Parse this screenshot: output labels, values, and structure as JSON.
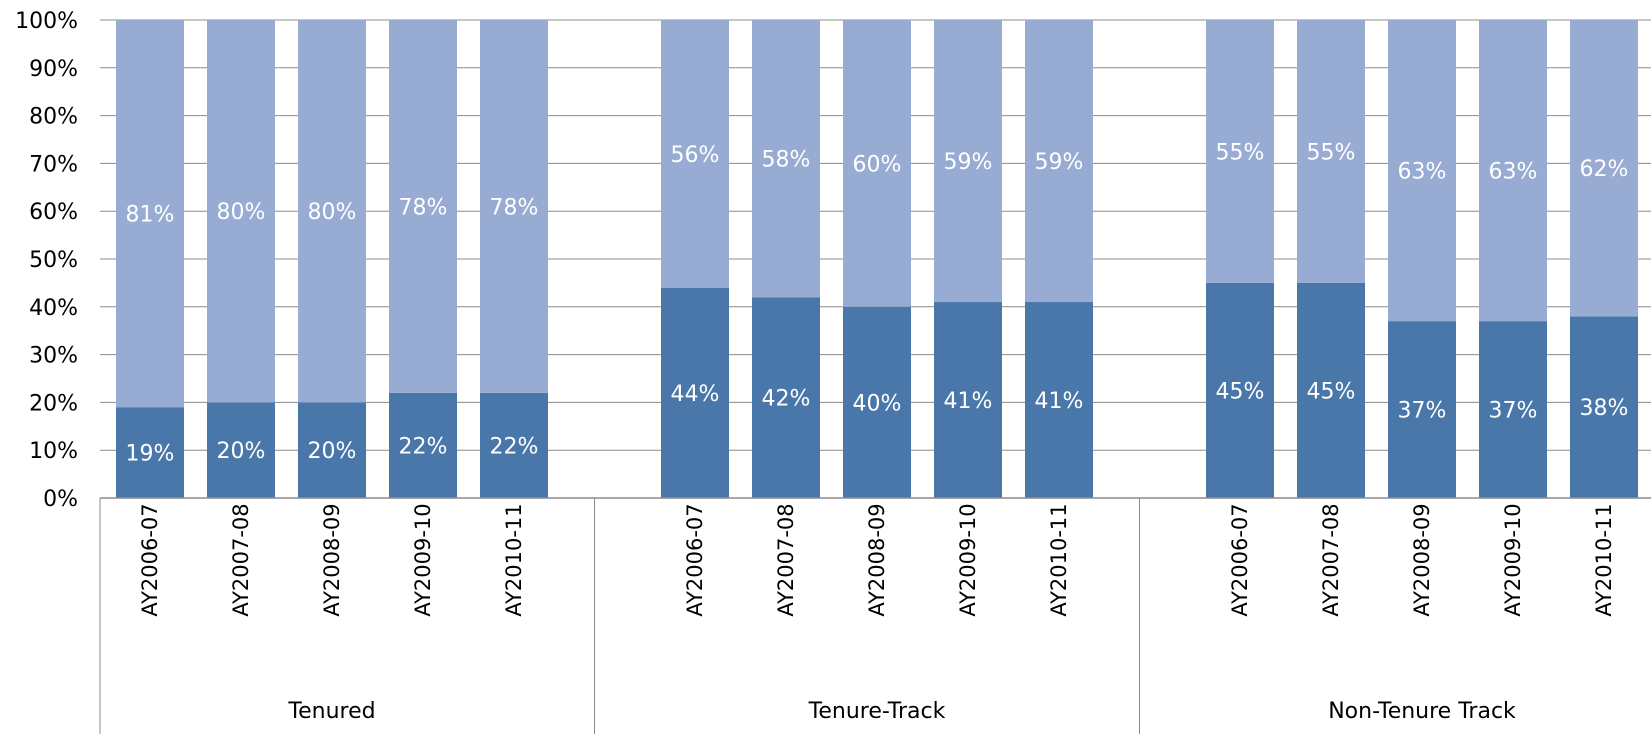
{
  "chart_data": {
    "type": "bar",
    "stacked": true,
    "percent": true,
    "y_ticks": [
      "0%",
      "10%",
      "20%",
      "30%",
      "40%",
      "50%",
      "60%",
      "70%",
      "80%",
      "90%",
      "100%"
    ],
    "ylim": [
      0,
      100
    ],
    "grid": true,
    "legend": "none",
    "colors": {
      "lower": "#4a77aa",
      "upper": "#97abd3",
      "grid": "#8c8c8c",
      "axis": "#8c8c8c"
    },
    "groups": [
      {
        "name": "Tenured",
        "categories": [
          "AY2006-07",
          "AY2007-08",
          "AY2008-09",
          "AY2009-10",
          "AY2010-11"
        ],
        "lower": [
          19,
          20,
          20,
          22,
          22
        ],
        "upper": [
          81,
          80,
          80,
          78,
          78
        ],
        "lower_labels": [
          "19%",
          "20%",
          "20%",
          "22%",
          "22%"
        ],
        "upper_labels": [
          "81%",
          "80%",
          "80%",
          "78%",
          "78%"
        ]
      },
      {
        "name": "Tenure-Track",
        "categories": [
          "AY2006-07",
          "AY2007-08",
          "AY2008-09",
          "AY2009-10",
          "AY2010-11"
        ],
        "lower": [
          44,
          42,
          40,
          41,
          41
        ],
        "upper": [
          56,
          58,
          60,
          59,
          59
        ],
        "lower_labels": [
          "44%",
          "42%",
          "40%",
          "41%",
          "41%"
        ],
        "upper_labels": [
          "56%",
          "58%",
          "60%",
          "59%",
          "59%"
        ]
      },
      {
        "name": "Non-Tenure Track",
        "categories": [
          "AY2006-07",
          "AY2007-08",
          "AY2008-09",
          "AY2009-10",
          "AY2010-11"
        ],
        "lower": [
          45,
          45,
          37,
          37,
          38
        ],
        "upper": [
          55,
          55,
          63,
          63,
          62
        ],
        "lower_labels": [
          "45%",
          "45%",
          "37%",
          "37%",
          "38%"
        ],
        "upper_labels": [
          "55%",
          "55%",
          "63%",
          "63%",
          "62%"
        ]
      }
    ]
  }
}
